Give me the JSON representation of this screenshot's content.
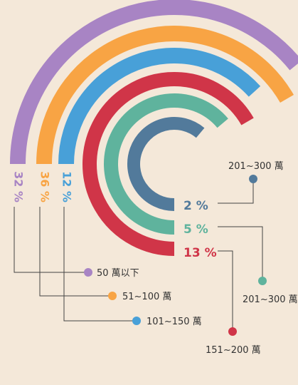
{
  "chart_data": {
    "type": "radial-bar",
    "title": "",
    "series": [
      {
        "name": "50 萬以下",
        "value": 32,
        "label": "32 %",
        "color": "#a884c4"
      },
      {
        "name": "51~100 萬",
        "value": 36,
        "label": "36 %",
        "color": "#f8a444"
      },
      {
        "name": "101~150 萬",
        "value": 12,
        "label": "12 %",
        "color": "#48a0d8"
      },
      {
        "name": "151~200 萬",
        "value": 13,
        "label": "13 %",
        "color": "#d03548"
      },
      {
        "name": "201~300 萬",
        "value": 5,
        "label": "5 %",
        "color": "#5fb39d"
      },
      {
        "name": "201~300 萬",
        "value": 2,
        "label": "2 %",
        "color": "#527a9b"
      }
    ]
  },
  "colors": {
    "background": "#f4e8d9",
    "leader_line": "#444444"
  }
}
